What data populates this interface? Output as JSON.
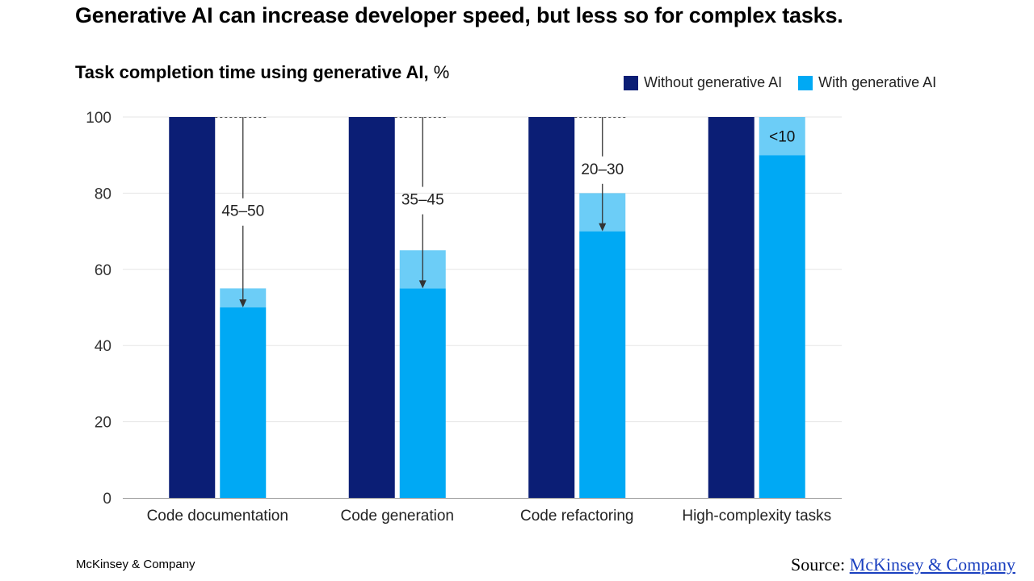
{
  "headline": "Generative AI can increase developer speed, but less so for complex tasks.",
  "footer": {
    "brand": "McKinsey & Company",
    "source_prefix": "Source:",
    "source_link": "McKinsey & Company"
  },
  "colors": {
    "without": "#0b1e75",
    "with": "#00a9f4",
    "with_range": "#6ccdf7",
    "grid": "#e6e6e6",
    "axis": "#999999"
  },
  "chart_data": {
    "type": "bar",
    "title": "Task completion time using generative AI,",
    "title_unit": "%",
    "categories": [
      "Code documentation",
      "Code generation",
      "Code refactoring",
      "High-complexity tasks"
    ],
    "yticks": [
      0,
      20,
      40,
      60,
      80,
      100
    ],
    "ylim": [
      0,
      100
    ],
    "series": [
      {
        "name": "Without generative AI",
        "values": [
          100,
          100,
          100,
          100
        ]
      },
      {
        "name": "With generative AI",
        "low": [
          50,
          55,
          70,
          90
        ],
        "high": [
          55,
          65,
          80,
          100
        ]
      }
    ],
    "annotations": [
      "45–50",
      "35–45",
      "20–30",
      "<10"
    ],
    "legend_position": "top-right",
    "grid": true
  }
}
